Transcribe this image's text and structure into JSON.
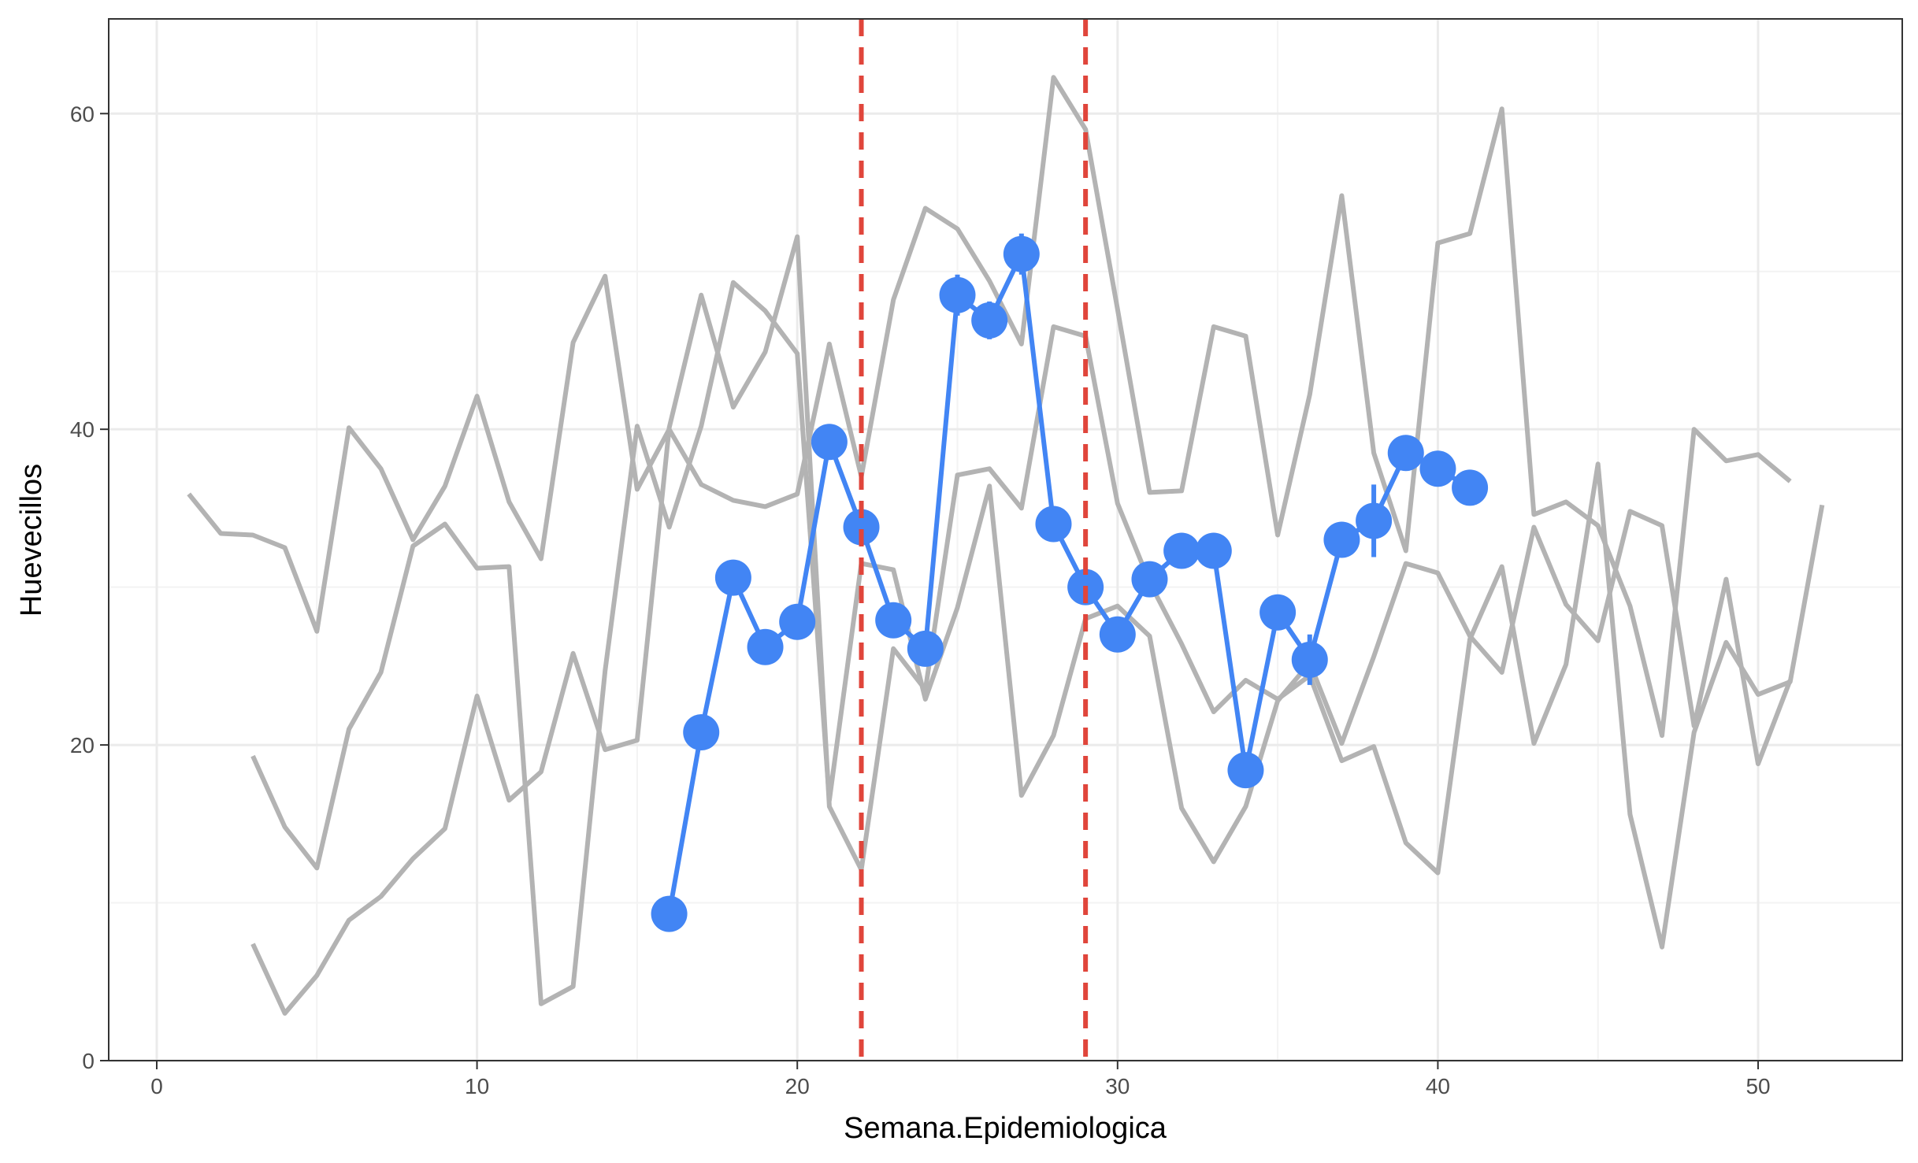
{
  "chart_data": {
    "type": "line",
    "title": "",
    "xlabel": "Semana.Epidemiologica",
    "ylabel": "Huevecillos",
    "xlim": [
      -1.5,
      54.5
    ],
    "ylim": [
      0,
      66
    ],
    "x_ticks": [
      0,
      10,
      20,
      30,
      40,
      50
    ],
    "x_tick_labels": [
      "0",
      "10",
      "20",
      "30",
      "40",
      "50"
    ],
    "y_ticks": [
      0,
      20,
      40,
      60
    ],
    "y_tick_labels": [
      "0",
      "20",
      "40",
      "60"
    ],
    "grid": true,
    "legend": "none",
    "vlines": [
      {
        "x": 22,
        "color": "#e0453b",
        "style": "dashed"
      },
      {
        "x": 29,
        "color": "#e0453b",
        "style": "dashed"
      }
    ],
    "colors": {
      "background_series": "#b3b3b3",
      "highlight": "#4285f4",
      "vline": "#e0453b",
      "grid_major": "#ebebeb",
      "grid_minor": "#f3f3f3"
    },
    "background_series": [
      {
        "x": [
          1,
          2,
          3,
          4,
          5,
          6,
          7,
          8,
          9,
          10,
          11,
          12,
          13,
          14,
          15,
          16,
          17,
          18,
          19,
          20,
          21,
          22,
          23,
          24,
          25,
          26,
          27,
          28,
          29,
          30,
          31,
          32,
          33,
          34,
          35,
          36,
          37,
          38,
          39,
          40,
          41,
          42,
          43,
          44,
          45,
          46,
          47,
          48,
          49,
          50,
          51
        ],
        "values": [
          35.9,
          33.4,
          33.3,
          32.5,
          27.2,
          40.1,
          37.5,
          33.0,
          36.4,
          42.1,
          35.4,
          31.8,
          45.5,
          49.7,
          36.2,
          40.0,
          36.5,
          35.5,
          35.1,
          35.9,
          45.4,
          37.0,
          48.2,
          54.0,
          52.7,
          49.4,
          45.4,
          62.3,
          59.0,
          47.6,
          36.0,
          36.1,
          46.5,
          45.9,
          33.3,
          42.2,
          54.8,
          38.5,
          32.3,
          51.8,
          52.4,
          60.3,
          34.6,
          35.4,
          33.9,
          28.8,
          20.6,
          40.0,
          38.0,
          38.4,
          36.7
        ]
      },
      {
        "x": [
          3,
          4,
          5,
          6,
          7,
          8,
          9,
          10,
          11,
          12,
          13,
          14,
          15,
          16,
          17,
          18,
          19,
          20,
          21,
          22,
          23,
          24,
          25,
          26,
          27,
          28,
          29,
          30,
          31,
          32,
          33,
          34,
          35,
          36,
          37,
          38,
          39,
          40,
          41,
          42,
          43,
          44,
          45,
          46,
          47,
          48,
          49,
          50,
          51
        ],
        "values": [
          19.3,
          14.8,
          12.2,
          21.0,
          24.6,
          32.6,
          34.0,
          31.2,
          31.3,
          3.6,
          4.7,
          24.7,
          40.2,
          33.8,
          40.2,
          49.3,
          47.5,
          44.8,
          16.5,
          31.5,
          31.1,
          22.9,
          28.7,
          36.4,
          16.8,
          20.6,
          28.0,
          28.8,
          26.9,
          16.0,
          12.6,
          16.1,
          22.8,
          25.2,
          20.1,
          25.6,
          31.5,
          30.9,
          26.9,
          24.6,
          33.8,
          28.9,
          26.6,
          34.8,
          33.9,
          21.2,
          30.5,
          18.8,
          24.1
        ]
      },
      {
        "x": [
          3,
          4,
          5,
          6,
          7,
          8,
          9,
          10,
          11,
          12,
          13,
          14,
          15,
          16,
          17,
          18,
          19,
          20,
          21,
          22,
          23,
          24,
          25,
          26,
          27,
          28,
          29,
          30,
          31,
          32,
          33,
          34,
          35,
          36,
          37,
          38,
          39,
          40,
          41,
          42,
          43,
          44,
          45,
          46,
          47,
          48,
          49,
          50,
          51,
          52
        ],
        "values": [
          7.4,
          3.0,
          5.4,
          8.9,
          10.4,
          12.8,
          14.7,
          23.1,
          16.5,
          18.3,
          25.8,
          19.7,
          20.3,
          40.1,
          48.5,
          41.4,
          44.9,
          52.2,
          16.1,
          12.1,
          26.1,
          23.5,
          37.1,
          37.5,
          35.0,
          46.5,
          45.9,
          35.3,
          30.3,
          26.4,
          22.1,
          24.1,
          22.9,
          24.4,
          19.0,
          19.9,
          13.8,
          11.9,
          26.7,
          31.3,
          20.1,
          25.1,
          37.8,
          15.6,
          7.2,
          20.8,
          26.5,
          23.2,
          24.0,
          35.2
        ]
      }
    ],
    "series": [
      {
        "x": [
          16,
          17,
          18,
          19,
          20,
          21,
          22,
          23,
          24,
          25,
          26,
          27,
          28,
          29,
          30,
          31,
          32,
          33,
          34,
          35,
          36,
          37,
          38,
          39,
          40,
          41
        ],
        "values": [
          9.3,
          20.8,
          30.6,
          26.2,
          27.8,
          39.2,
          33.8,
          27.9,
          26.1,
          48.5,
          46.9,
          51.1,
          34.0,
          30.0,
          27.0,
          30.5,
          32.3,
          32.3,
          18.4,
          28.4,
          25.4,
          33.0,
          34.2,
          38.5,
          37.5,
          36.3
        ],
        "error": [
          0.2,
          0.2,
          0.2,
          0.2,
          0.2,
          0.2,
          0.2,
          0.2,
          0.2,
          1.3,
          1.2,
          1.3,
          0.2,
          0.2,
          0.2,
          0.2,
          0.2,
          0.2,
          0.2,
          0.2,
          1.6,
          0.4,
          2.3,
          0.2,
          0.2,
          0.2
        ]
      }
    ]
  }
}
